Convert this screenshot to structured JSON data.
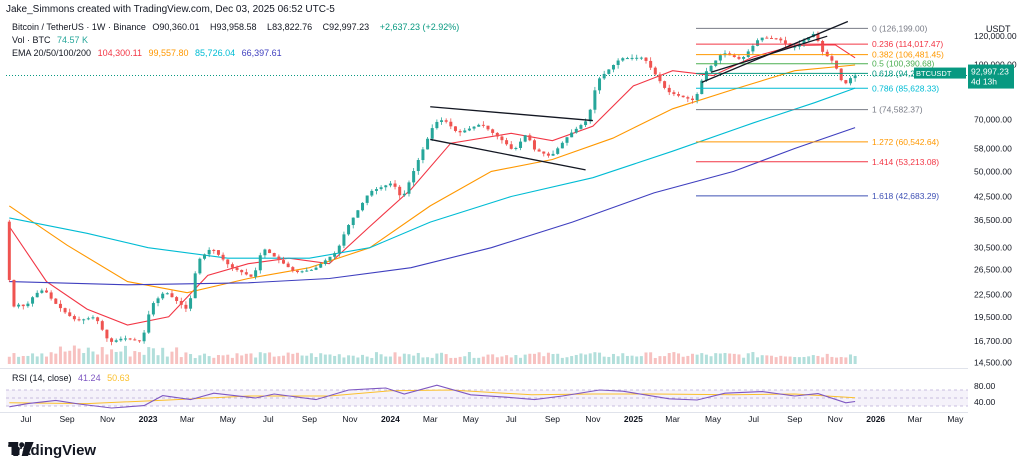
{
  "header": {
    "created_by": "Jake_Simmons created with TradingView.com, Dec 03, 2025 06:52 UTC-5"
  },
  "legend": {
    "symbol_line": "Bitcoin / TetherUS · 1W · Binance",
    "ohlc": {
      "O": "90,360.01",
      "H": "93,958.58",
      "L": "83,822.76",
      "C": "92,997.23",
      "change": "+2,637.23 (+2.92%)"
    },
    "volume_label": "Vol · BTC",
    "volume_value": "74.57 K",
    "ema_label": "EMA 20/50/100/200",
    "ema_values": [
      "104,300.11",
      "99,557.80",
      "85,726.04",
      "66,397.61"
    ]
  },
  "price_axis_label": "USDT",
  "price_ticks": [
    "120,000.00",
    "100,000.00",
    "70,000.00",
    "58,000.00",
    "50,000.00",
    "42,500.00",
    "36,500.00",
    "30,500.00",
    "26,500.00",
    "22,500.00",
    "19,500.00",
    "16,700.00",
    "14,500.00"
  ],
  "price_tag": {
    "symbol": "BTCUSDT",
    "value": "92,997.23",
    "countdown": "4d 13h"
  },
  "rsi": {
    "label": "RSI (14, close)",
    "value": "41.24",
    "ma_value": "50.63",
    "ticks": [
      "80.00",
      "40.00"
    ]
  },
  "time_ticks": [
    "Jul",
    "Sep",
    "Nov",
    "2023",
    "Mar",
    "May",
    "Jul",
    "Sep",
    "Nov",
    "2024",
    "Mar",
    "May",
    "Jul",
    "Sep",
    "Nov",
    "2025",
    "Mar",
    "May",
    "Jul",
    "Sep",
    "Nov",
    "2026",
    "Mar",
    "May"
  ],
  "brand": "TradingView",
  "colors": {
    "up": "#26a69a",
    "down": "#ef5350",
    "ema20": "#f23645",
    "ema50": "#ff9800",
    "ema100": "#00bcd4",
    "ema200": "#3f3fbf",
    "rsi": "#7e57c2",
    "rsi_ma": "#fbc02d",
    "current_price": "#089981"
  },
  "chart_data": {
    "type": "candlestick",
    "symbol": "BTCUSDT",
    "timeframe": "1W",
    "scale": "log",
    "ylim": [
      14000,
      135000
    ],
    "x_range": [
      "2022-06-01",
      "2026-05-20"
    ],
    "fibonacci_levels": [
      {
        "ratio": "0",
        "price": "126,199.00",
        "color": "#787b86"
      },
      {
        "ratio": "0.236",
        "price": "114,017.47",
        "color": "#f23645"
      },
      {
        "ratio": "0.382",
        "price": "106,481.45",
        "color": "#ff9800"
      },
      {
        "ratio": "0.5",
        "price": "100,390.68",
        "color": "#4caf50"
      },
      {
        "ratio": "0.618",
        "price": "94,299.91",
        "color": "#089981"
      },
      {
        "ratio": "0.786",
        "price": "85,628.33",
        "color": "#00bcd4"
      },
      {
        "ratio": "1",
        "price": "74,582.37",
        "color": "#787b86"
      },
      {
        "ratio": "1.272",
        "price": "60,542.64",
        "color": "#ff9800"
      },
      {
        "ratio": "1.414",
        "price": "53,213.08",
        "color": "#f23645"
      },
      {
        "ratio": "1.618",
        "price": "42,683.29",
        "color": "#3f51b5"
      }
    ],
    "price_path": [
      [
        "2022-06-06",
        29900
      ],
      [
        "2022-06-13",
        20500
      ],
      [
        "2022-06-20",
        21200
      ],
      [
        "2022-07-04",
        20800
      ],
      [
        "2022-07-18",
        22600
      ],
      [
        "2022-08-01",
        23300
      ],
      [
        "2022-08-15",
        21500
      ],
      [
        "2022-09-05",
        19800
      ],
      [
        "2022-09-19",
        19000
      ],
      [
        "2022-10-17",
        19500
      ],
      [
        "2022-11-07",
        16500
      ],
      [
        "2022-11-28",
        17000
      ],
      [
        "2022-12-26",
        16600
      ],
      [
        "2023-01-09",
        21000
      ],
      [
        "2023-01-30",
        23000
      ],
      [
        "2023-03-06",
        20300
      ],
      [
        "2023-03-20",
        28000
      ],
      [
        "2023-04-10",
        30500
      ],
      [
        "2023-05-08",
        27000
      ],
      [
        "2023-06-12",
        25100
      ],
      [
        "2023-06-26",
        30500
      ],
      [
        "2023-08-14",
        26000
      ],
      [
        "2023-09-11",
        26500
      ],
      [
        "2023-10-16",
        29800
      ],
      [
        "2023-10-30",
        34500
      ],
      [
        "2023-12-04",
        43800
      ],
      [
        "2024-01-08",
        46500
      ],
      [
        "2024-01-22",
        41700
      ],
      [
        "2024-02-12",
        52000
      ],
      [
        "2024-03-11",
        68500
      ],
      [
        "2024-03-25",
        70000
      ],
      [
        "2024-04-15",
        64000
      ],
      [
        "2024-05-20",
        68000
      ],
      [
        "2024-06-24",
        60500
      ],
      [
        "2024-07-08",
        57000
      ],
      [
        "2024-07-29",
        64500
      ],
      [
        "2024-08-05",
        58000
      ],
      [
        "2024-09-02",
        55000
      ],
      [
        "2024-09-30",
        63500
      ],
      [
        "2024-10-28",
        70000
      ],
      [
        "2024-11-11",
        90000
      ],
      [
        "2024-12-16",
        104000
      ],
      [
        "2025-01-20",
        104500
      ],
      [
        "2025-02-24",
        84000
      ],
      [
        "2025-03-10",
        82000
      ],
      [
        "2025-04-07",
        79000
      ],
      [
        "2025-04-21",
        94000
      ],
      [
        "2025-05-19",
        108000
      ],
      [
        "2025-06-16",
        103000
      ],
      [
        "2025-07-14",
        119000
      ],
      [
        "2025-08-11",
        118000
      ],
      [
        "2025-09-01",
        111000
      ],
      [
        "2025-10-06",
        123000
      ],
      [
        "2025-10-13",
        110000
      ],
      [
        "2025-11-03",
        101000
      ],
      [
        "2025-11-17",
        87000
      ],
      [
        "2025-12-01",
        92997.23
      ]
    ],
    "ema": {
      "ema20": [
        [
          "2022-06-06",
          35000
        ],
        [
          "2022-08-01",
          24500
        ],
        [
          "2022-10-01",
          20500
        ],
        [
          "2022-12-01",
          18500
        ],
        [
          "2023-02-01",
          19500
        ],
        [
          "2023-04-01",
          25500
        ],
        [
          "2023-06-01",
          27500
        ],
        [
          "2023-08-01",
          28500
        ],
        [
          "2023-10-01",
          27500
        ],
        [
          "2023-12-01",
          35000
        ],
        [
          "2024-02-01",
          44500
        ],
        [
          "2024-04-01",
          60000
        ],
        [
          "2024-07-01",
          64000
        ],
        [
          "2024-09-01",
          61000
        ],
        [
          "2024-11-01",
          67000
        ],
        [
          "2025-01-01",
          87000
        ],
        [
          "2025-03-01",
          96000
        ],
        [
          "2025-05-01",
          93000
        ],
        [
          "2025-07-01",
          105000
        ],
        [
          "2025-09-01",
          113000
        ],
        [
          "2025-11-01",
          113500
        ],
        [
          "2025-12-01",
          104300.11
        ]
      ],
      "ema50": [
        [
          "2022-06-06",
          40000
        ],
        [
          "2022-09-01",
          31000
        ],
        [
          "2022-12-01",
          24500
        ],
        [
          "2023-03-01",
          22800
        ],
        [
          "2023-06-01",
          25000
        ],
        [
          "2023-09-01",
          26800
        ],
        [
          "2023-12-01",
          30500
        ],
        [
          "2024-03-01",
          40000
        ],
        [
          "2024-06-01",
          50000
        ],
        [
          "2024-09-01",
          54000
        ],
        [
          "2024-12-01",
          62000
        ],
        [
          "2025-03-01",
          75000
        ],
        [
          "2025-06-01",
          85000
        ],
        [
          "2025-09-01",
          96000
        ],
        [
          "2025-12-01",
          99557.8
        ]
      ],
      "ema100": [
        [
          "2022-06-06",
          37000
        ],
        [
          "2022-10-01",
          33500
        ],
        [
          "2023-01-01",
          30500
        ],
        [
          "2023-05-01",
          28500
        ],
        [
          "2023-09-01",
          28500
        ],
        [
          "2023-12-01",
          30500
        ],
        [
          "2024-03-01",
          36000
        ],
        [
          "2024-07-01",
          42500
        ],
        [
          "2024-11-01",
          48000
        ],
        [
          "2025-03-01",
          57000
        ],
        [
          "2025-07-01",
          68500
        ],
        [
          "2025-10-01",
          78000
        ],
        [
          "2025-12-01",
          85726.04
        ]
      ],
      "ema200": [
        [
          "2022-06-06",
          24500
        ],
        [
          "2022-12-01",
          24000
        ],
        [
          "2023-06-01",
          24300
        ],
        [
          "2023-10-01",
          25000
        ],
        [
          "2024-02-01",
          26800
        ],
        [
          "2024-06-01",
          30500
        ],
        [
          "2024-10-01",
          36000
        ],
        [
          "2025-02-01",
          43500
        ],
        [
          "2025-06-01",
          50000
        ],
        [
          "2025-09-01",
          58000
        ],
        [
          "2025-12-01",
          66397.61
        ]
      ]
    },
    "trendlines": [
      {
        "from": [
          "2024-03-01",
          76000
        ],
        "to": [
          "2024-11-01",
          69500
        ]
      },
      {
        "from": [
          "2024-03-01",
          61500
        ],
        "to": [
          "2024-10-21",
          50500
        ]
      },
      {
        "from": [
          "2025-04-14",
          89000
        ],
        "to": [
          "2025-11-20",
          132000
        ]
      },
      {
        "from": [
          "2025-04-28",
          95000
        ],
        "to": [
          "2025-10-20",
          120000
        ]
      }
    ],
    "rsi": {
      "ylim": [
        20,
        95
      ],
      "bands": [
        30,
        70
      ],
      "series": [
        [
          "2022-06-06",
          28
        ],
        [
          "2022-07-04",
          36
        ],
        [
          "2022-08-15",
          44
        ],
        [
          "2022-09-19",
          35
        ],
        [
          "2022-11-07",
          25
        ],
        [
          "2022-12-26",
          31
        ],
        [
          "2023-01-23",
          56
        ],
        [
          "2023-03-06",
          46
        ],
        [
          "2023-04-10",
          62
        ],
        [
          "2023-06-12",
          50
        ],
        [
          "2023-07-10",
          60
        ],
        [
          "2023-09-11",
          46
        ],
        [
          "2023-10-30",
          70
        ],
        [
          "2023-12-25",
          75
        ],
        [
          "2024-01-22",
          60
        ],
        [
          "2024-03-11",
          82
        ],
        [
          "2024-05-01",
          58
        ],
        [
          "2024-06-24",
          52
        ],
        [
          "2024-08-05",
          46
        ],
        [
          "2024-09-16",
          55
        ],
        [
          "2024-11-11",
          70
        ],
        [
          "2024-12-16",
          67
        ],
        [
          "2025-02-24",
          48
        ],
        [
          "2025-04-07",
          45
        ],
        [
          "2025-05-19",
          62
        ],
        [
          "2025-07-14",
          66
        ],
        [
          "2025-09-01",
          55
        ],
        [
          "2025-10-06",
          61
        ],
        [
          "2025-11-17",
          38
        ],
        [
          "2025-12-01",
          41.24
        ]
      ],
      "ma": [
        [
          "2022-06-06",
          38
        ],
        [
          "2022-10-01",
          36
        ],
        [
          "2023-02-01",
          45
        ],
        [
          "2023-06-01",
          55
        ],
        [
          "2023-10-01",
          55
        ],
        [
          "2024-01-01",
          68
        ],
        [
          "2024-04-01",
          70
        ],
        [
          "2024-08-01",
          58
        ],
        [
          "2024-11-01",
          60
        ],
        [
          "2025-02-01",
          60
        ],
        [
          "2025-06-01",
          58
        ],
        [
          "2025-09-01",
          60
        ],
        [
          "2025-12-01",
          50.63
        ]
      ]
    }
  }
}
